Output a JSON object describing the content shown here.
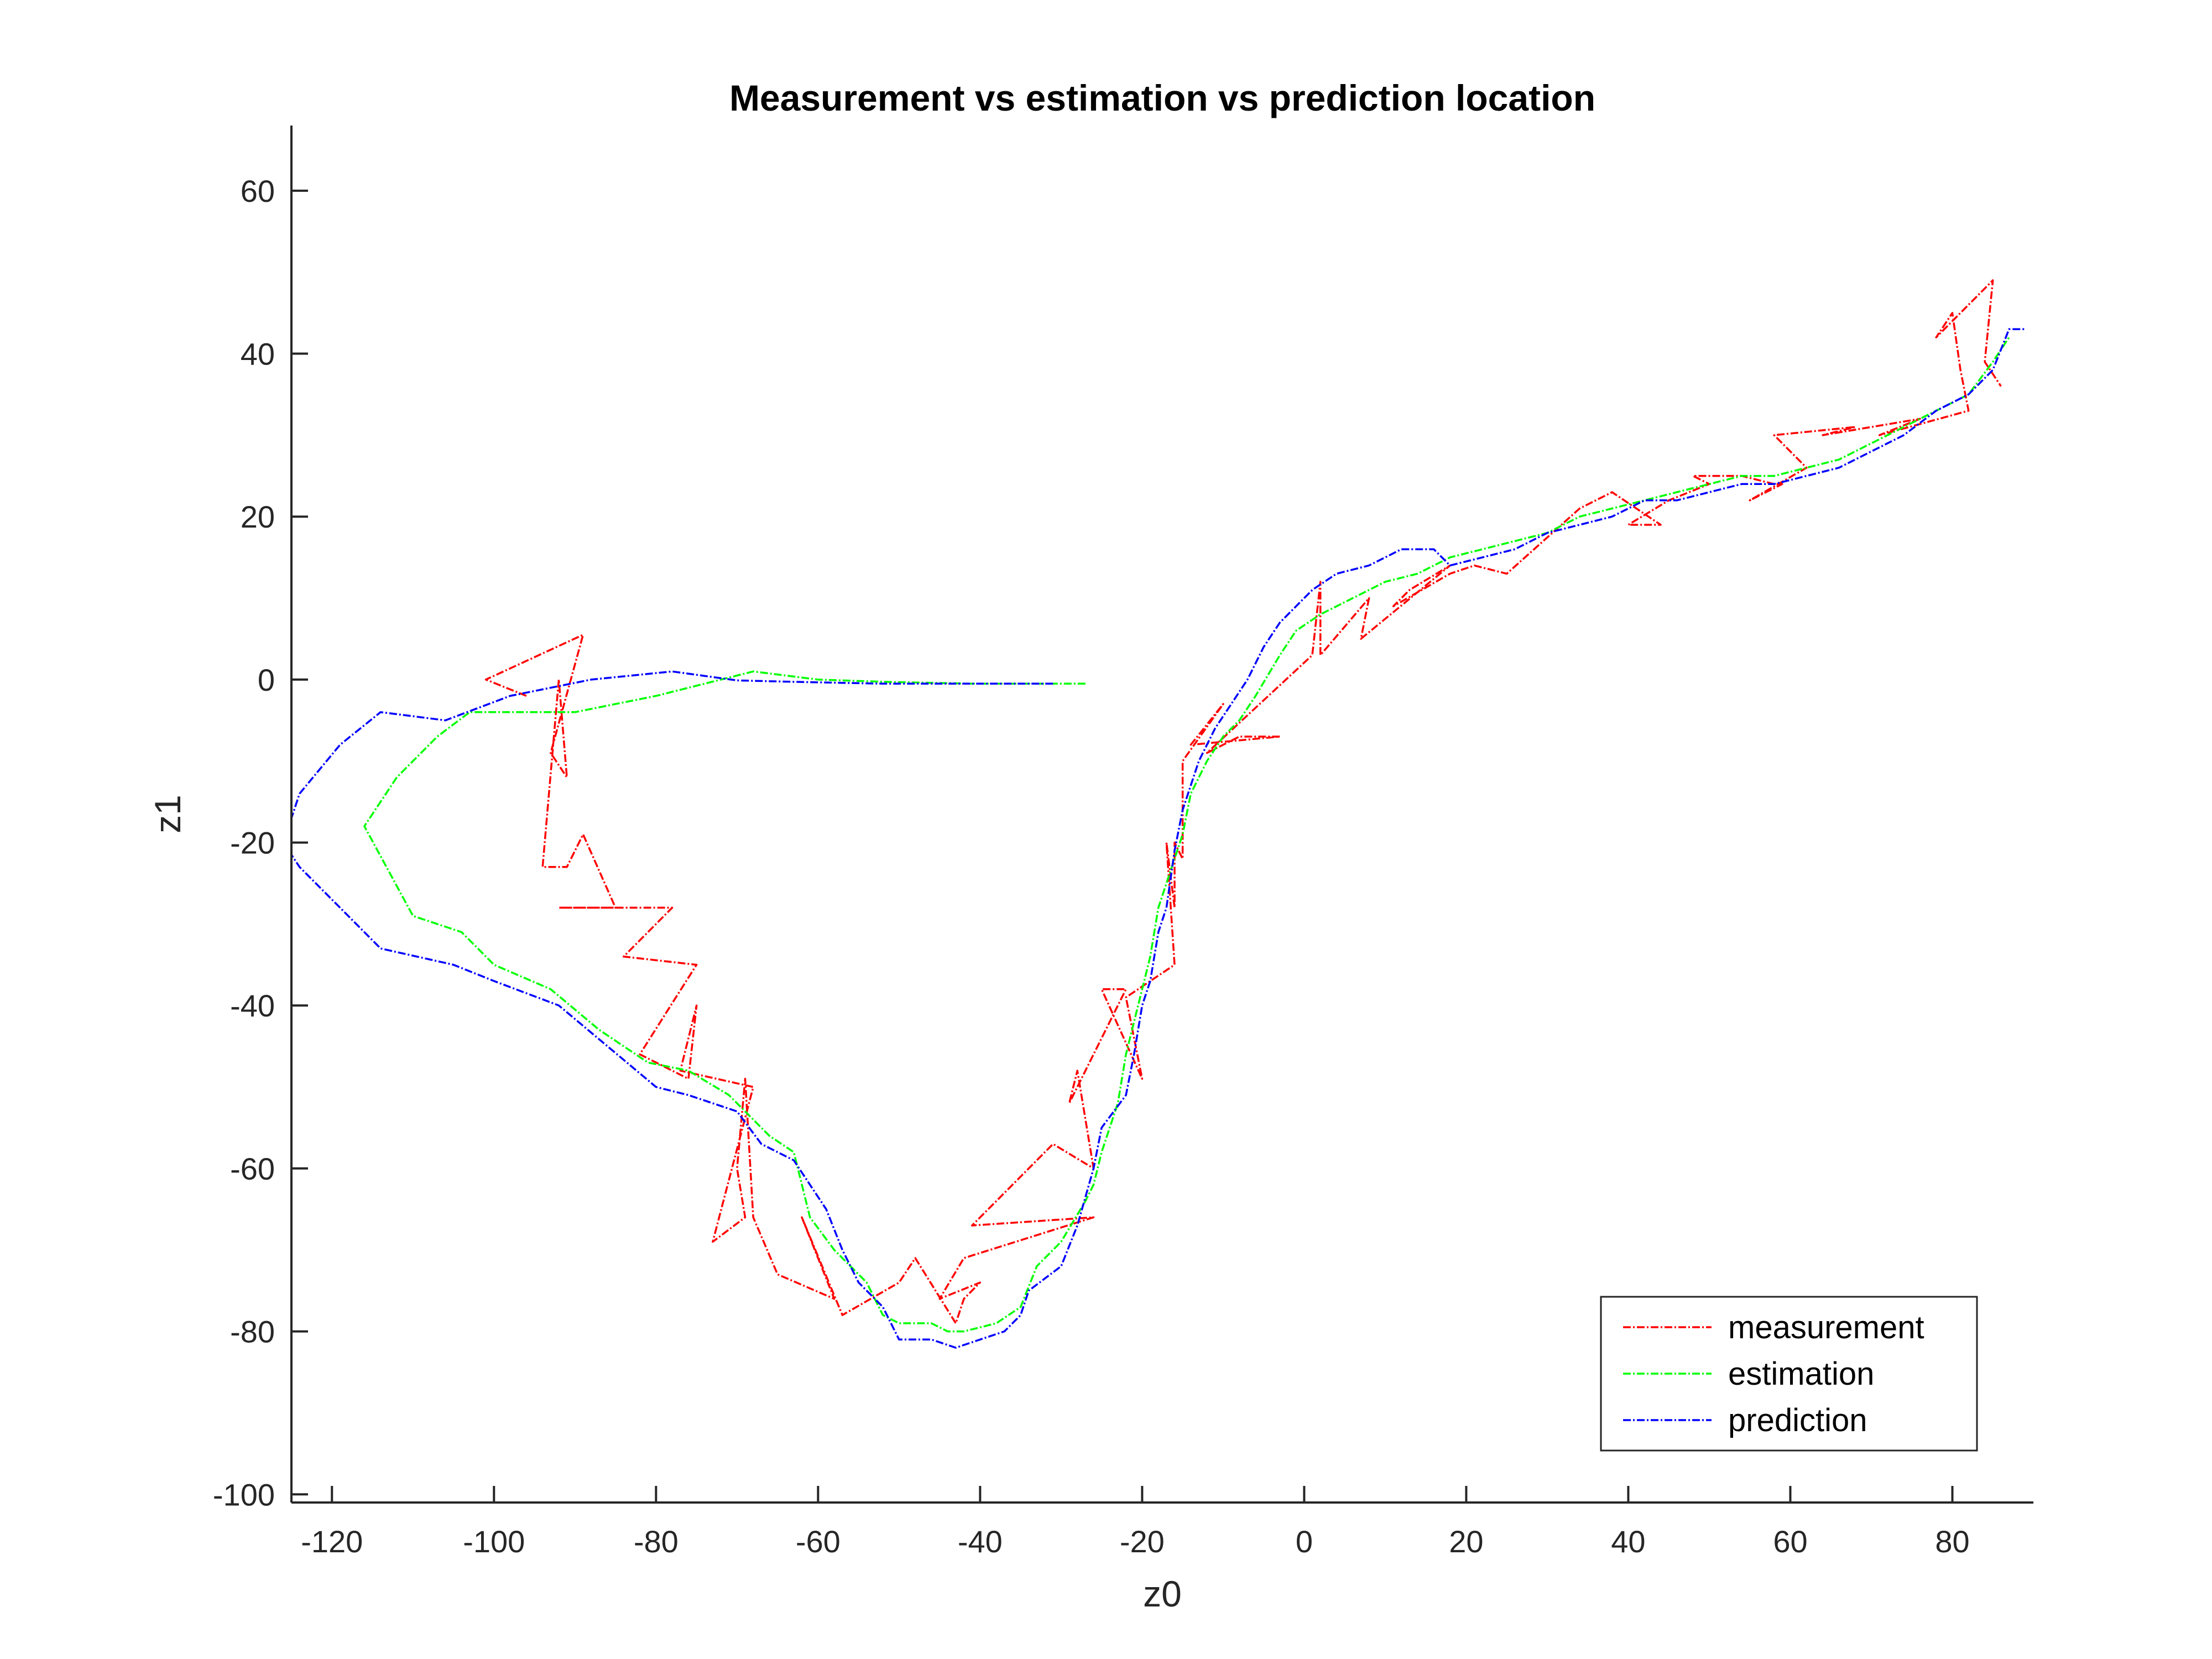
{
  "chart_data": {
    "type": "line",
    "title": "Measurement vs estimation vs prediction location",
    "xlabel": "z0",
    "ylabel": "z1",
    "xlim": [
      -125,
      90
    ],
    "ylim": [
      -101,
      68
    ],
    "xticks": [
      -120,
      -100,
      -80,
      -60,
      -40,
      -20,
      0,
      20,
      40,
      60,
      80
    ],
    "yticks": [
      -100,
      -80,
      -60,
      -40,
      -20,
      0,
      20,
      40,
      60
    ],
    "grid": false,
    "legend_position": "bottom-right",
    "series": [
      {
        "name": "measurement",
        "color": "#ff0000",
        "x": [
          -96,
          -101,
          -89,
          -93,
          -91,
          -92,
          -94,
          -91,
          -89,
          -85,
          -92,
          -78,
          -84,
          -75,
          -82,
          -76,
          -75,
          -77,
          -68,
          -73,
          -69,
          -70,
          -69,
          -68,
          -65,
          -58,
          -62,
          -57,
          -50,
          -48,
          -43,
          -42,
          -40,
          -45,
          -42,
          -26,
          -41,
          -31,
          -26,
          -28,
          -29,
          -22,
          -25,
          -20,
          -22,
          -16,
          -17,
          -16,
          -16,
          -15,
          -15,
          -10,
          -14,
          -3,
          -8,
          -12,
          1,
          2,
          2,
          8,
          7,
          18,
          13,
          11,
          18,
          21,
          25,
          34,
          38,
          41,
          44,
          40,
          45,
          50,
          48,
          54,
          58,
          59,
          55,
          62,
          58,
          68,
          64,
          76,
          71,
          82,
          81,
          80,
          78,
          85,
          84,
          86
        ],
        "y": [
          -2,
          0,
          5.5,
          -9,
          -12,
          0,
          -23,
          -23,
          -19,
          -28,
          -28,
          -28,
          -34,
          -35,
          -46,
          -49,
          -40,
          -48,
          -50,
          -69,
          -66,
          -60,
          -49,
          -66,
          -73,
          -76,
          -66,
          -78,
          -74,
          -71,
          -79,
          -76,
          -74,
          -76,
          -71,
          -66,
          -67,
          -57,
          -60,
          -48,
          -52,
          -38,
          -38,
          -49,
          -39,
          -35,
          -20,
          -28,
          -20,
          -22,
          -10,
          -3,
          -8,
          -7,
          -7,
          -9,
          3,
          12,
          3,
          10,
          5,
          14,
          11,
          9,
          13,
          14,
          13,
          21,
          23,
          21,
          19,
          19,
          22,
          24,
          25,
          25,
          24,
          24,
          22,
          26,
          30,
          31,
          30,
          32,
          30,
          33,
          38,
          45,
          42,
          49,
          39,
          36
        ]
      },
      {
        "name": "estimation",
        "color": "#00ff00",
        "x": [
          -27,
          -31,
          -41,
          -51,
          -60,
          -68,
          -80,
          -90,
          -98,
          -103,
          -107,
          -112,
          -116,
          -110,
          -104,
          -100,
          -93,
          -87,
          -81,
          -76,
          -71,
          -68,
          -66,
          -63,
          -61,
          -58,
          -54,
          -52,
          -50,
          -46,
          -44,
          -42,
          -38,
          -35,
          -33,
          -30,
          -27,
          -26,
          -25,
          -23,
          -22,
          -21,
          -20,
          -19,
          -18,
          -17,
          -15,
          -14,
          -12,
          -10,
          -8,
          -6,
          -3,
          -1,
          2,
          6,
          10,
          14,
          18,
          22,
          26,
          30,
          34,
          38,
          42,
          46,
          50,
          54,
          58,
          62,
          66,
          70,
          74,
          78,
          82,
          85,
          87
        ],
        "y": [
          -0.5,
          -0.5,
          -0.5,
          -0.3,
          0,
          1,
          -2,
          -4,
          -4,
          -4,
          -7,
          -12,
          -18,
          -29,
          -31,
          -35,
          -38,
          -43,
          -47,
          -48,
          -51,
          -54,
          -56,
          -58,
          -66,
          -70,
          -74,
          -78,
          -79,
          -79,
          -80,
          -80,
          -79,
          -77,
          -72,
          -69,
          -64,
          -62,
          -58,
          -52,
          -46,
          -42,
          -38,
          -34,
          -28,
          -25,
          -19,
          -14,
          -10,
          -7,
          -5,
          -2,
          3,
          6,
          8,
          10,
          12,
          13,
          15,
          16,
          17,
          18,
          20,
          21,
          22,
          23,
          24,
          25,
          25,
          26,
          27,
          29,
          31,
          33,
          35,
          39,
          42
        ]
      },
      {
        "name": "prediction",
        "color": "#0000ff",
        "x": [
          -31,
          -42,
          -52,
          -62,
          -70,
          -78,
          -88,
          -98,
          -106,
          -114,
          -119,
          -124,
          -126,
          -124,
          -114,
          -105,
          -100,
          -92,
          -86,
          -80,
          -76,
          -70,
          -67,
          -63,
          -59,
          -57,
          -55,
          -52,
          -50,
          -48,
          -46,
          -43,
          -40,
          -37,
          -35,
          -34,
          -30,
          -28,
          -26,
          -25,
          -22,
          -21,
          -20,
          -19,
          -18,
          -17,
          -16,
          -15,
          -13,
          -11,
          -9,
          -7,
          -5,
          -3,
          -1,
          1,
          4,
          8,
          12,
          16,
          18,
          22,
          26,
          30,
          34,
          38,
          42,
          46,
          50,
          54,
          58,
          62,
          66,
          70,
          74,
          78,
          82,
          85,
          87,
          89
        ],
        "y": [
          -0.5,
          -0.5,
          -0.5,
          -0.3,
          -0.1,
          1,
          0,
          -2,
          -5,
          -4,
          -8,
          -14,
          -20,
          -23,
          -33,
          -35,
          -37,
          -40,
          -45,
          -50,
          -51,
          -53,
          -57,
          -59,
          -65,
          -70,
          -74,
          -77,
          -81,
          -81,
          -81,
          -82,
          -81,
          -80,
          -78,
          -75,
          -72,
          -67,
          -60,
          -55,
          -51,
          -46,
          -40,
          -37,
          -31,
          -28,
          -21,
          -16,
          -10,
          -6,
          -3,
          0,
          4,
          7,
          9,
          11,
          13,
          14,
          16,
          16,
          14,
          15,
          16,
          18,
          19,
          20,
          22,
          22,
          23,
          24,
          24,
          25,
          26,
          28,
          30,
          33,
          35,
          38,
          43,
          43
        ]
      }
    ]
  }
}
